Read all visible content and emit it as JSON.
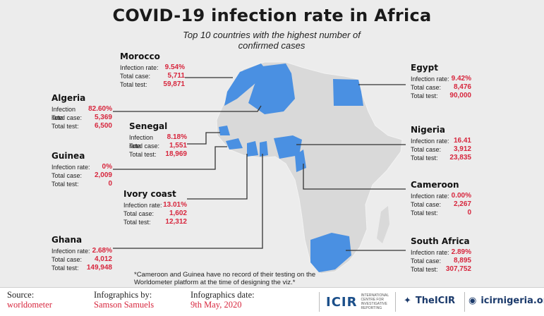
{
  "chart_data": {
    "type": "map",
    "title": "COVID-19 infection rate in Africa",
    "subtitle": "Top 10 countries with the highest number of confirmed cases",
    "labels": {
      "infection_rate": "Infection rate:",
      "total_case": "Total case:",
      "total_test": "Total test:"
    },
    "countries": [
      {
        "name": "Morocco",
        "infection_rate": "9.54%",
        "total_case": "5,711",
        "total_test": "59,871"
      },
      {
        "name": "Algeria",
        "infection_rate": "82.60%",
        "total_case": "5,369",
        "total_test": "6,500"
      },
      {
        "name": "Senegal",
        "infection_rate": "8.18%",
        "total_case": "1,551",
        "total_test": "18,969"
      },
      {
        "name": "Guinea",
        "infection_rate": "0%",
        "total_case": "2,009",
        "total_test": "0"
      },
      {
        "name": "Ivory coast",
        "infection_rate": "13.01%",
        "total_case": "1,602",
        "total_test": "12,312"
      },
      {
        "name": "Ghana",
        "infection_rate": "2.68%",
        "total_case": "4,012",
        "total_test": "149,948"
      },
      {
        "name": "Egypt",
        "infection_rate": "9.42%",
        "total_case": "8,476",
        "total_test": "90,000"
      },
      {
        "name": "Nigeria",
        "infection_rate": "16.41",
        "total_case": "3,912",
        "total_test": "23,835"
      },
      {
        "name": "Cameroon",
        "infection_rate": "0.00%",
        "total_case": "2,267",
        "total_test": "0"
      },
      {
        "name": "South Africa",
        "infection_rate": "2.89%",
        "total_case": "8,895",
        "total_test": "307,752"
      }
    ],
    "note": "*Cameroon and Guinea have no record of their testing on the Worldometer platform at the time of designing the viz.*",
    "colors": {
      "highlight": "#4a90e2",
      "land": "#d9d9d9",
      "value": "#d7263d"
    }
  },
  "footer": {
    "source_label": "Source:",
    "source_value": "worldometer",
    "by_label": "Infographics by:",
    "by_value": "Samson Samuels",
    "date_label": "Infographics date:",
    "date_value": "9th May, 2020",
    "logo": "ICIR",
    "logo_sub": "International Centre for Investigative Reporting",
    "twitter": "TheICIR",
    "website": "icirnigeria.org"
  }
}
